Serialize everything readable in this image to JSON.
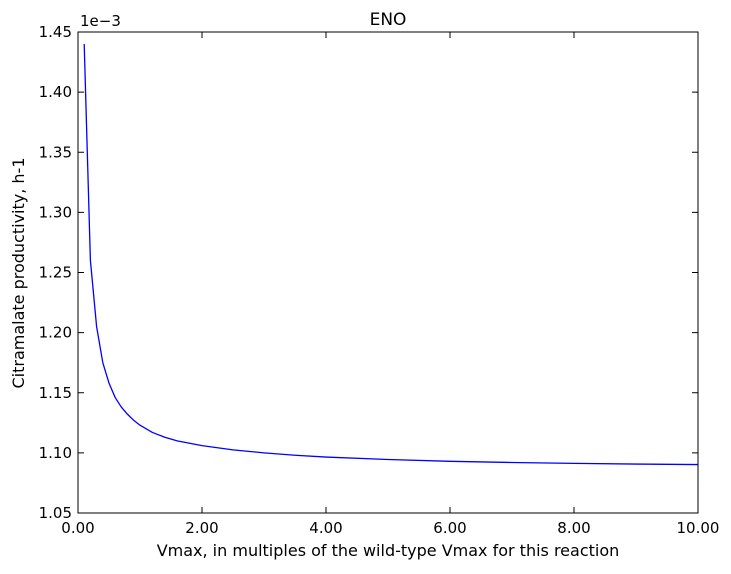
{
  "chart_data": {
    "type": "line",
    "title": "ENO",
    "xlabel": "Vmax, in multiples of the wild-type Vmax for this reaction",
    "ylabel": "Citramalate productivity, h-1",
    "y_offset_text": "1e−3",
    "y_scale_factor": 0.001,
    "xlim": [
      0,
      10
    ],
    "ylim": [
      1.05,
      1.45
    ],
    "x_ticks": [
      0,
      2,
      4,
      6,
      8,
      10
    ],
    "x_tick_labels": [
      "0.00",
      "2.00",
      "4.00",
      "6.00",
      "8.00",
      "10.00"
    ],
    "y_ticks": [
      1.05,
      1.1,
      1.15,
      1.2,
      1.25,
      1.3,
      1.35,
      1.4,
      1.45
    ],
    "y_tick_labels": [
      "1.05",
      "1.10",
      "1.15",
      "1.20",
      "1.25",
      "1.30",
      "1.35",
      "1.40",
      "1.45"
    ],
    "grid": false,
    "legend": "none",
    "series": [
      {
        "color": "#0000ff",
        "x": [
          0.1,
          0.2,
          0.3,
          0.4,
          0.5,
          0.6,
          0.7,
          0.8,
          0.9,
          1.0,
          1.2,
          1.4,
          1.6,
          1.8,
          2.0,
          2.5,
          3.0,
          3.5,
          4.0,
          5.0,
          6.0,
          7.0,
          8.0,
          9.0,
          10.0
        ],
        "y": [
          1.44,
          1.26,
          1.205,
          1.175,
          1.158,
          1.146,
          1.138,
          1.132,
          1.127,
          1.123,
          1.117,
          1.113,
          1.11,
          1.108,
          1.106,
          1.1025,
          1.1,
          1.098,
          1.0965,
          1.0945,
          1.093,
          1.092,
          1.0913,
          1.0907,
          1.0903
        ]
      }
    ]
  }
}
